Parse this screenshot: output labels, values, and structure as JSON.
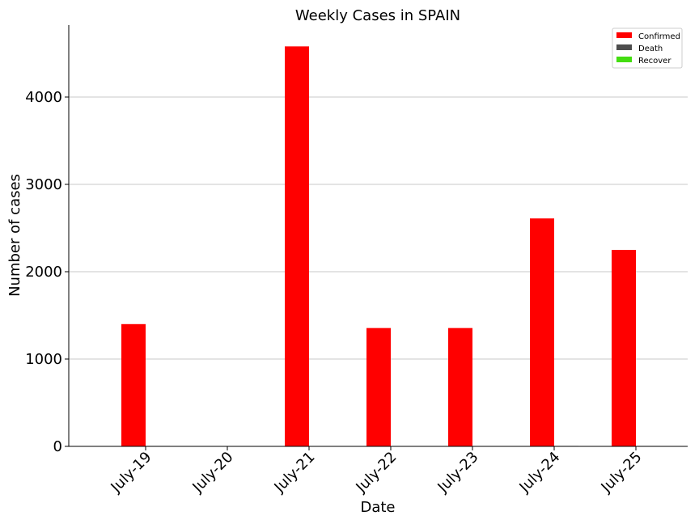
{
  "chart_data": {
    "type": "bar",
    "title": "Weekly Cases in SPAIN",
    "xlabel": "Date",
    "ylabel": "Number of cases",
    "categories": [
      "July-19",
      "July-20",
      "July-21",
      "July-22",
      "July-23",
      "July-24",
      "July-25"
    ],
    "series": [
      {
        "name": "Confirmed",
        "color": "#ff0000",
        "values": [
          1400,
          0,
          4580,
          1355,
          1355,
          2610,
          2250
        ]
      },
      {
        "name": "Death",
        "color": "#4d4d4d",
        "values": [
          5,
          0,
          0,
          0,
          0,
          5,
          5
        ]
      },
      {
        "name": "Recover",
        "color": "#44dd11",
        "values": [
          0,
          0,
          0,
          0,
          0,
          0,
          0
        ]
      }
    ],
    "ylim": [
      0,
      4800
    ],
    "yticks": [
      0,
      1000,
      2000,
      3000,
      4000
    ],
    "ytick_labels": [
      "0",
      "1000",
      "2000",
      "3000",
      "4000"
    ],
    "grid": "horizontal",
    "legend_position": "top-right"
  }
}
